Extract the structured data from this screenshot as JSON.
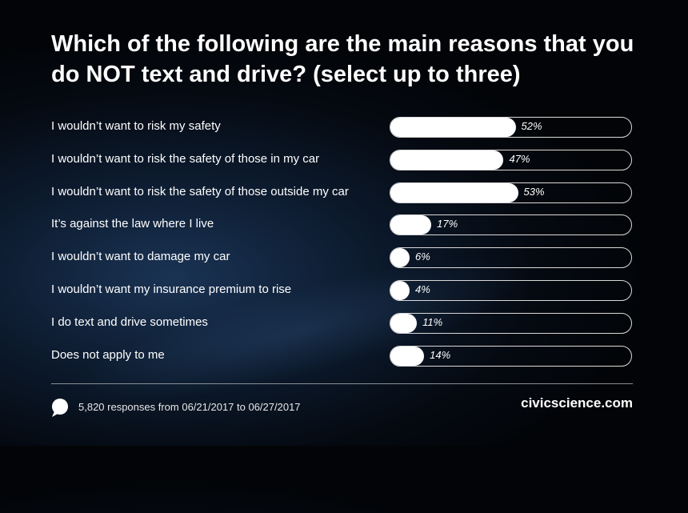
{
  "title": "Which of the following are the main reasons that you do NOT text and drive? (select up to three)",
  "chart_data": {
    "type": "bar",
    "orientation": "horizontal",
    "categories": [
      "I wouldn’t want to risk my safety",
      "I wouldn’t want to risk the safety of those in my car",
      "I wouldn’t want to risk the safety of those outside my car",
      "It’s against the law where I live",
      "I wouldn’t want to damage my car",
      "I wouldn’t want my insurance premium to rise",
      "I do text and drive sometimes",
      "Does not apply to me"
    ],
    "values": [
      52,
      47,
      53,
      17,
      6,
      4,
      11,
      14
    ],
    "value_labels": [
      "52%",
      "47%",
      "53%",
      "17%",
      "6%",
      "4%",
      "11%",
      "14%"
    ],
    "xlim": [
      0,
      100
    ],
    "colors": {
      "bar": "#ffffff",
      "track_border": "#d9d9d9",
      "text": "#ffffff"
    }
  },
  "footer": {
    "icon": "speech-bubble-icon",
    "responses": "5,820 responses from 06/21/2017 to 06/27/2017",
    "brand": "civicscience.com"
  }
}
